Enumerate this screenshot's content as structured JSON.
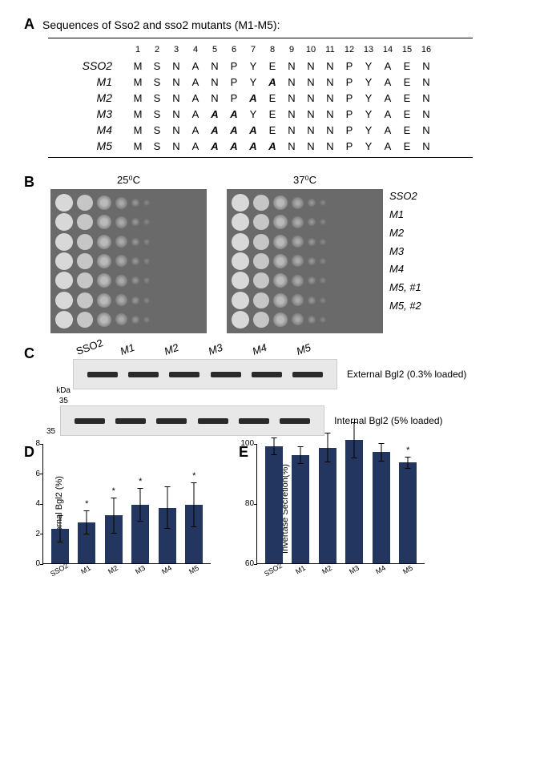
{
  "panelA": {
    "label": "A",
    "title": "Sequences of Sso2 and sso2 mutants (M1-M5):",
    "positions": [
      "1",
      "2",
      "3",
      "4",
      "5",
      "6",
      "7",
      "8",
      "9",
      "10",
      "11",
      "12",
      "13",
      "14",
      "15",
      "16"
    ],
    "rows": [
      {
        "name": "SSO2",
        "italic": true,
        "seq": [
          "M",
          "S",
          "N",
          "A",
          "N",
          "P",
          "Y",
          "E",
          "N",
          "N",
          "N",
          "P",
          "Y",
          "A",
          "E",
          "N"
        ],
        "mut": []
      },
      {
        "name": "M1",
        "italic": true,
        "seq": [
          "M",
          "S",
          "N",
          "A",
          "N",
          "P",
          "Y",
          "A",
          "N",
          "N",
          "N",
          "P",
          "Y",
          "A",
          "E",
          "N"
        ],
        "mut": [
          7
        ]
      },
      {
        "name": "M2",
        "italic": true,
        "seq": [
          "M",
          "S",
          "N",
          "A",
          "N",
          "P",
          "A",
          "E",
          "N",
          "N",
          "N",
          "P",
          "Y",
          "A",
          "E",
          "N"
        ],
        "mut": [
          6
        ]
      },
      {
        "name": "M3",
        "italic": true,
        "seq": [
          "M",
          "S",
          "N",
          "A",
          "A",
          "A",
          "Y",
          "E",
          "N",
          "N",
          "N",
          "P",
          "Y",
          "A",
          "E",
          "N"
        ],
        "mut": [
          4,
          5
        ]
      },
      {
        "name": "M4",
        "italic": true,
        "seq": [
          "M",
          "S",
          "N",
          "A",
          "A",
          "A",
          "A",
          "E",
          "N",
          "N",
          "N",
          "P",
          "Y",
          "A",
          "E",
          "N"
        ],
        "mut": [
          4,
          5,
          6
        ]
      },
      {
        "name": "M5",
        "italic": true,
        "seq": [
          "M",
          "S",
          "N",
          "A",
          "A",
          "A",
          "A",
          "A",
          "N",
          "N",
          "N",
          "P",
          "Y",
          "A",
          "E",
          "N"
        ],
        "mut": [
          4,
          5,
          6,
          7
        ]
      }
    ]
  },
  "panelB": {
    "label": "B",
    "temps": [
      "25⁰C",
      "37⁰C"
    ],
    "rows": [
      "SSO2",
      "M1",
      "M2",
      "M3",
      "M4",
      "M5, #1",
      "M5, #2"
    ],
    "plate_bg": "#6a6a6a",
    "spot_color": "#d8d8d8"
  },
  "panelC": {
    "label": "C",
    "kda_label": "kDa",
    "kda_value": "35",
    "headers": [
      "SSO2",
      "M1",
      "M2",
      "M3",
      "M4",
      "M5"
    ],
    "blot1_caption": "External Bgl2 (0.3% loaded)",
    "blot2_caption": "Internal Bgl2 (5% loaded)"
  },
  "panelD": {
    "label": "D",
    "ylabel": "Internal Bgl2 (%)",
    "ymin": 0,
    "ymax": 8,
    "ystep": 2,
    "yticks": [
      0,
      2,
      4,
      6,
      8
    ],
    "bars": [
      {
        "label": "SSO2",
        "value": 2.3,
        "err": 0.9,
        "sig": false
      },
      {
        "label": "M1",
        "value": 2.7,
        "err": 0.8,
        "sig": true
      },
      {
        "label": "M2",
        "value": 3.2,
        "err": 1.2,
        "sig": true
      },
      {
        "label": "M3",
        "value": 3.9,
        "err": 1.1,
        "sig": true
      },
      {
        "label": "M4",
        "value": 3.7,
        "err": 1.4,
        "sig": false
      },
      {
        "label": "M5",
        "value": 3.9,
        "err": 1.5,
        "sig": true
      }
    ],
    "bar_color": "#23365f"
  },
  "panelE": {
    "label": "E",
    "ylabel": "Invertase Secretion(%)",
    "ymin": 60,
    "ymax": 100,
    "ystep": 20,
    "yticks": [
      60,
      80,
      100
    ],
    "bars": [
      {
        "label": "SSO2",
        "value": 99,
        "err": 3,
        "sig": false
      },
      {
        "label": "M1",
        "value": 96,
        "err": 3,
        "sig": false
      },
      {
        "label": "M2",
        "value": 98.5,
        "err": 5,
        "sig": false
      },
      {
        "label": "M3",
        "value": 101,
        "err": 6,
        "sig": false
      },
      {
        "label": "M4",
        "value": 97,
        "err": 3,
        "sig": false
      },
      {
        "label": "M5",
        "value": 93.5,
        "err": 2,
        "sig": true
      }
    ],
    "bar_color": "#23365f"
  }
}
